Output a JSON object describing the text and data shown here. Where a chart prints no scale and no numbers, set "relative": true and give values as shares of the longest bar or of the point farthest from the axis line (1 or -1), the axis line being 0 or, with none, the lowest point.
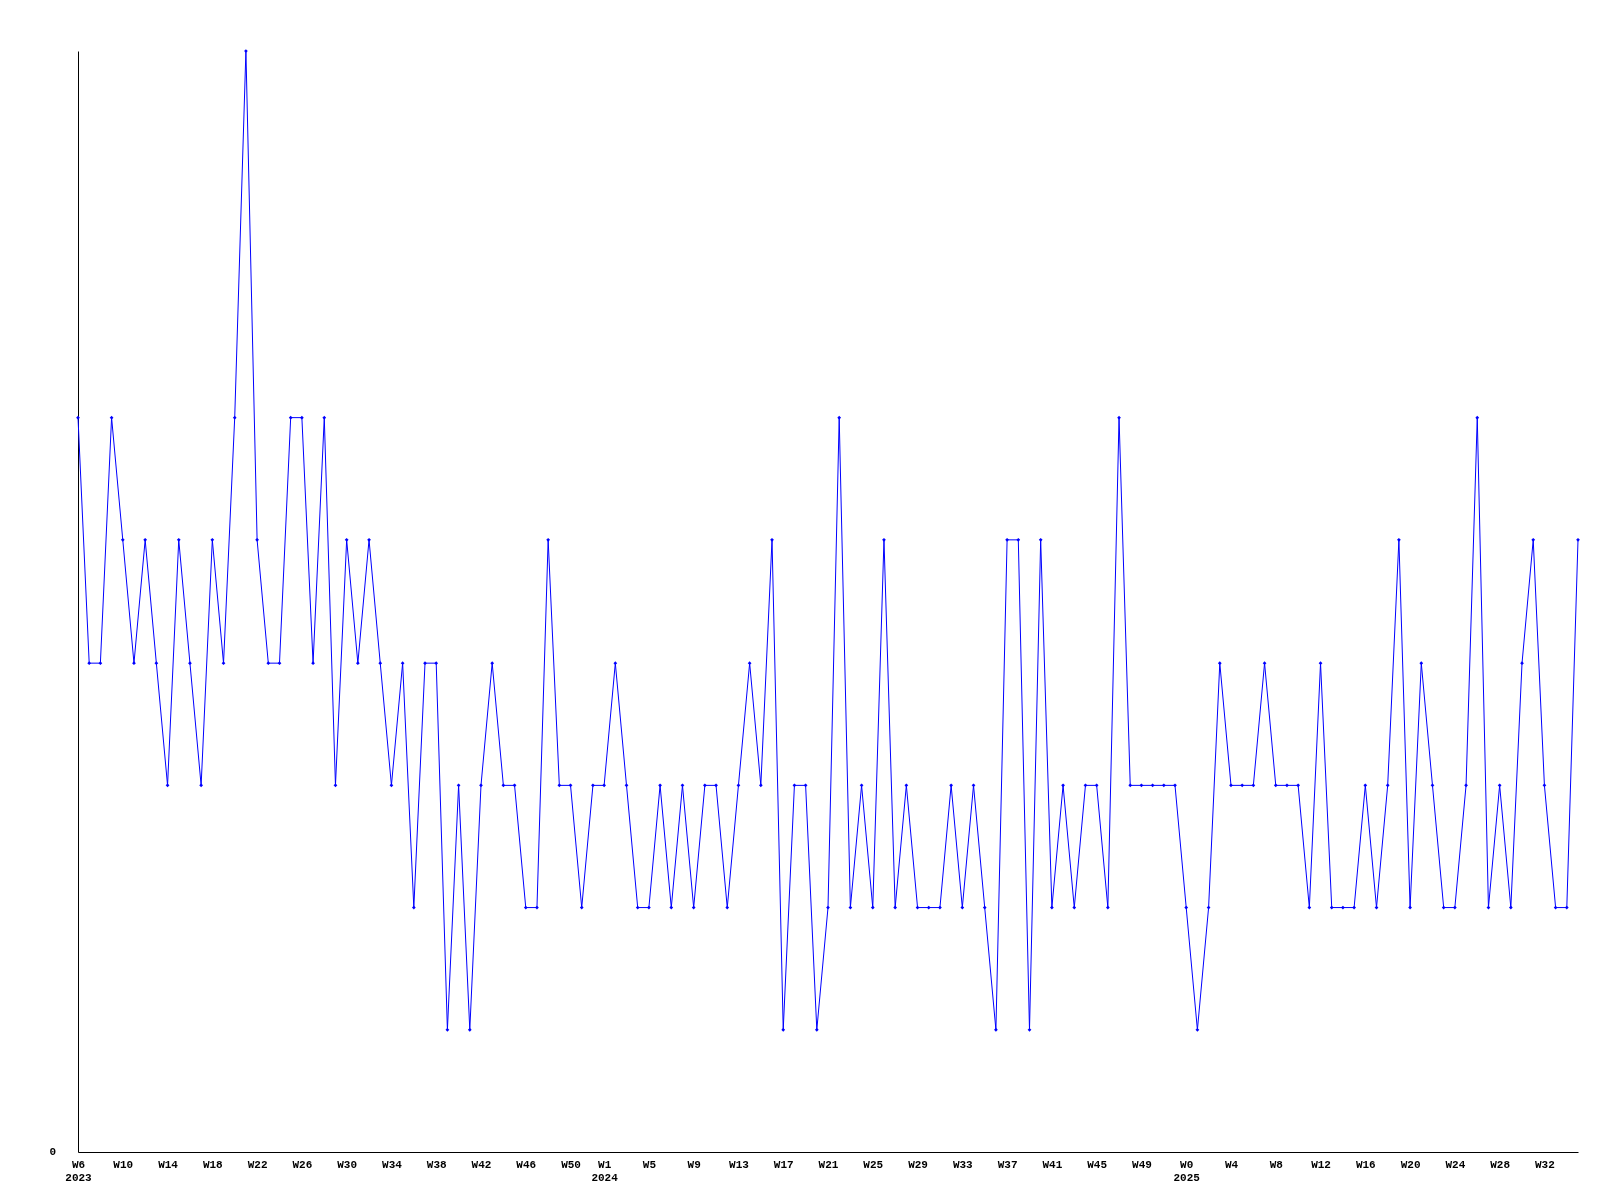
{
  "chart_data": {
    "type": "line",
    "relative": true,
    "annotations": [
      "0"
    ],
    "marker": "diamond",
    "grid": false,
    "legend": false,
    "categories": [
      "W6\n2023",
      null,
      null,
      null,
      "W10",
      null,
      null,
      null,
      "W14",
      null,
      null,
      null,
      "W18",
      null,
      null,
      null,
      "W22",
      null,
      null,
      null,
      "W26",
      null,
      null,
      null,
      "W30",
      null,
      null,
      null,
      "W34",
      null,
      null,
      null,
      "W38",
      null,
      null,
      null,
      "W42",
      null,
      null,
      null,
      "W46",
      null,
      null,
      null,
      "W50",
      null,
      null,
      "W1\n2024",
      null,
      null,
      null,
      "W5",
      null,
      null,
      null,
      "W9",
      null,
      null,
      null,
      "W13",
      null,
      null,
      null,
      "W17",
      null,
      null,
      null,
      "W21",
      null,
      null,
      null,
      "W25",
      null,
      null,
      null,
      "W29",
      null,
      null,
      null,
      "W33",
      null,
      null,
      null,
      "W37",
      null,
      null,
      null,
      "W41",
      null,
      null,
      null,
      "W45",
      null,
      null,
      null,
      "W49",
      null,
      null,
      null,
      "W0\n2025",
      null,
      null,
      null,
      "W4",
      null,
      null,
      null,
      "W8",
      null,
      null,
      null,
      "W12",
      null,
      null,
      null,
      "W16",
      null,
      null,
      null,
      "W20",
      null,
      null,
      null,
      "W24",
      null,
      null,
      null,
      "W28",
      null,
      null,
      null,
      "W32",
      null,
      null,
      null
    ],
    "series": [
      {
        "color": "#0000ff",
        "values": [
          0.667,
          0.444,
          0.444,
          0.667,
          0.556,
          0.444,
          0.556,
          0.444,
          0.333,
          0.556,
          0.444,
          0.333,
          0.556,
          0.444,
          0.667,
          1,
          0.556,
          0.444,
          0.444,
          0.667,
          0.667,
          0.444,
          0.667,
          0.333,
          0.556,
          0.444,
          0.556,
          0.444,
          0.333,
          0.444,
          0.222,
          0.444,
          0.444,
          0.111,
          0.333,
          0.111,
          0.333,
          0.444,
          0.333,
          0.333,
          0.222,
          0.222,
          0.556,
          0.333,
          0.333,
          0.222,
          0.333,
          0.333,
          0.444,
          0.333,
          0.222,
          0.222,
          0.333,
          0.222,
          0.333,
          0.222,
          0.333,
          0.333,
          0.222,
          0.333,
          0.444,
          0.333,
          0.556,
          0.111,
          0.333,
          0.333,
          0.111,
          0.222,
          0.667,
          0.222,
          0.333,
          0.222,
          0.556,
          0.222,
          0.333,
          0.222,
          0.222,
          0.222,
          0.333,
          0.222,
          0.333,
          0.222,
          0.111,
          0.556,
          0.556,
          0.111,
          0.556,
          0.222,
          0.333,
          0.222,
          0.333,
          0.333,
          0.222,
          0.667,
          0.333,
          0.333,
          0.333,
          0.333,
          0.333,
          0.222,
          0.111,
          0.222,
          0.444,
          0.333,
          0.333,
          0.333,
          0.444,
          0.333,
          0.333,
          0.333,
          0.222,
          0.444,
          0.222,
          0.222,
          0.222,
          0.333,
          0.222,
          0.333,
          0.556,
          0.222,
          0.444,
          0.333,
          0.222,
          0.222,
          0.333,
          0.667,
          0.222,
          0.333,
          0.222,
          0.444,
          0.556,
          0.333,
          0.222,
          0.222,
          0.556
        ]
      }
    ]
  }
}
